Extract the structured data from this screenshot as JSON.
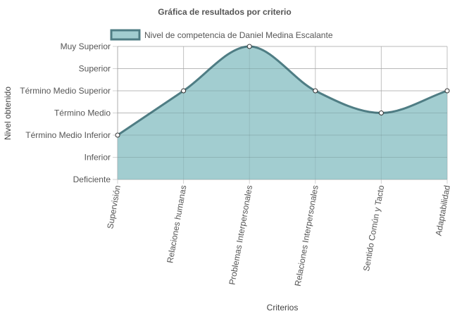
{
  "chart_data": {
    "type": "area",
    "title": "Gráfica de resultados por criterio",
    "xlabel": "Criterios",
    "ylabel": "Nivel obtenido",
    "categories": [
      "Supervisión",
      "Relaciones humanas",
      "Problemas Interpersonales",
      "Relaciones Interpersonales",
      "Sentido Común y Tacto",
      "Adaptabilidad"
    ],
    "y_levels": [
      "Deficiente",
      "Inferior",
      "Término Medio Inferior",
      "Término Medio",
      "Término Medio Superior",
      "Superior",
      "Muy Superior"
    ],
    "series": [
      {
        "name": "Nivel de competencia de Daniel Medina Escalante",
        "values": [
          3,
          5,
          7,
          5,
          4,
          5
        ],
        "fill_color": "#a2cdd0",
        "line_color": "#4f7d84",
        "point_fill": "#ffffff"
      }
    ],
    "ylim": [
      1,
      7
    ],
    "grid": true,
    "legend_position": "top",
    "grid_color": "#d3d3d3"
  }
}
